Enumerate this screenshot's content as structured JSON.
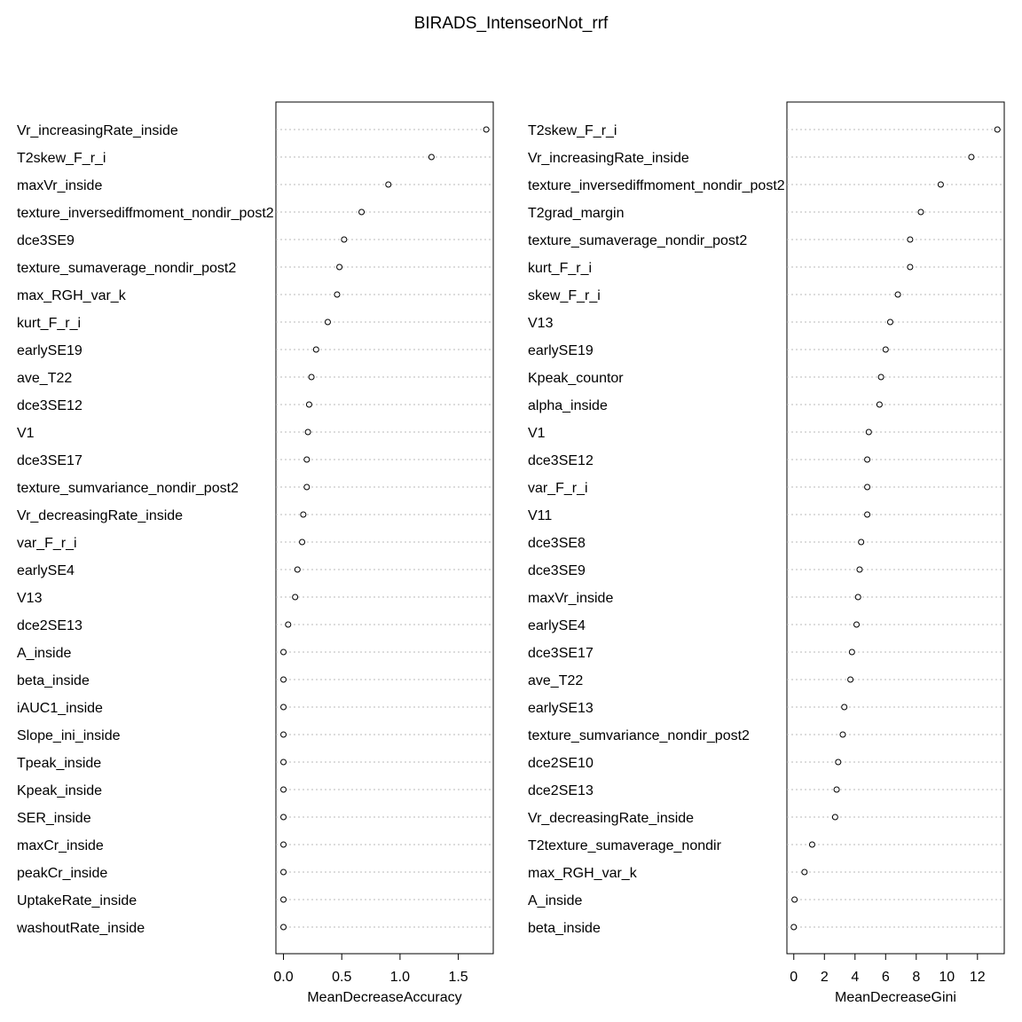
{
  "title": "BIRADS_IntenseorNot_rrf",
  "chart_data": [
    {
      "type": "scatter",
      "subtype": "dotchart",
      "xlabel": "MeanDecreaseAccuracy",
      "xticks": [
        0.0,
        0.5,
        1.0,
        1.5
      ],
      "xtick_labels": [
        "0.0",
        "0.5",
        "1.0",
        "1.5"
      ],
      "xlim": [
        -0.065,
        1.8
      ],
      "categories": [
        "Vr_increasingRate_inside",
        "T2skew_F_r_i",
        "maxVr_inside",
        "texture_inversediffmoment_nondir_post2",
        "dce3SE9",
        "texture_sumaverage_nondir_post2",
        "max_RGH_var_k",
        "kurt_F_r_i",
        "earlySE19",
        "ave_T22",
        "dce3SE12",
        "V1",
        "dce3SE17",
        "texture_sumvariance_nondir_post2",
        "Vr_decreasingRate_inside",
        "var_F_r_i",
        "earlySE4",
        "V13",
        "dce2SE13",
        "A_inside",
        "beta_inside",
        "iAUC1_inside",
        "Slope_ini_inside",
        "Tpeak_inside",
        "Kpeak_inside",
        "SER_inside",
        "maxCr_inside",
        "peakCr_inside",
        "UptakeRate_inside",
        "washoutRate_inside"
      ],
      "values": [
        1.74,
        1.27,
        0.9,
        0.67,
        0.52,
        0.48,
        0.46,
        0.38,
        0.28,
        0.24,
        0.22,
        0.21,
        0.2,
        0.2,
        0.17,
        0.16,
        0.12,
        0.1,
        0.04,
        0.0,
        0.0,
        0.0,
        0.0,
        0.0,
        0.0,
        0.0,
        0.0,
        0.0,
        0.0,
        0.0
      ]
    },
    {
      "type": "scatter",
      "subtype": "dotchart",
      "xlabel": "MeanDecreaseGini",
      "xticks": [
        0,
        2,
        4,
        6,
        8,
        10,
        12
      ],
      "xtick_labels": [
        "0",
        "2",
        "4",
        "6",
        "8",
        "10",
        "12"
      ],
      "xlim": [
        -0.45,
        13.75
      ],
      "categories": [
        "T2skew_F_r_i",
        "Vr_increasingRate_inside",
        "texture_inversediffmoment_nondir_post2",
        "T2grad_margin",
        "texture_sumaverage_nondir_post2",
        "kurt_F_r_i",
        "skew_F_r_i",
        "V13",
        "earlySE19",
        "Kpeak_countor",
        "alpha_inside",
        "V1",
        "dce3SE12",
        "var_F_r_i",
        "V11",
        "dce3SE8",
        "dce3SE9",
        "maxVr_inside",
        "earlySE4",
        "dce3SE17",
        "ave_T22",
        "earlySE13",
        "texture_sumvariance_nondir_post2",
        "dce2SE10",
        "dce2SE13",
        "Vr_decreasingRate_inside",
        "T2texture_sumaverage_nondir",
        "max_RGH_var_k",
        "A_inside",
        "beta_inside"
      ],
      "values": [
        13.3,
        11.6,
        9.6,
        8.3,
        7.6,
        7.6,
        6.8,
        6.3,
        6.0,
        5.7,
        5.6,
        4.9,
        4.8,
        4.8,
        4.8,
        4.4,
        4.3,
        4.2,
        4.1,
        3.8,
        3.7,
        3.3,
        3.2,
        2.9,
        2.8,
        2.7,
        1.2,
        0.7,
        0.05,
        0.0
      ]
    }
  ]
}
